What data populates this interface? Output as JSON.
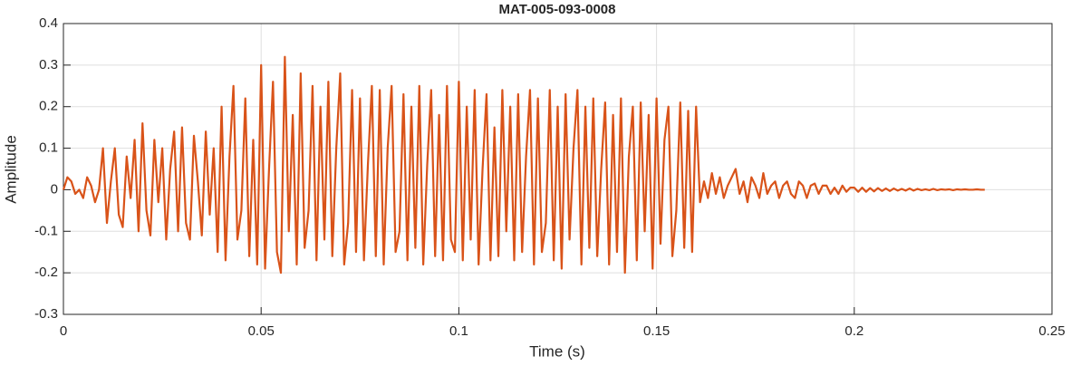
{
  "chart_data": {
    "type": "line",
    "title": "MAT-005-093-0008",
    "x_label": "Time (s)",
    "y_label": "Amplitude",
    "color": "#d95319",
    "grid": true,
    "xlim": [
      0,
      0.25
    ],
    "xticks": [
      0,
      0.05,
      0.1,
      0.15,
      0.2,
      0.25
    ],
    "ylim": [
      -0.3,
      0.4
    ],
    "yticks": [
      0.4,
      0.3,
      0.2,
      0.1,
      0,
      -0.1,
      -0.2,
      -0.3
    ],
    "x": [
      0,
      0.001,
      0.002,
      0.003,
      0.004,
      0.005,
      0.006,
      0.007,
      0.008,
      0.009,
      0.01,
      0.011,
      0.012,
      0.013,
      0.014,
      0.015,
      0.016,
      0.017,
      0.018,
      0.019,
      0.02,
      0.021,
      0.022,
      0.023,
      0.024,
      0.025,
      0.026,
      0.027,
      0.028,
      0.029,
      0.03,
      0.031,
      0.032,
      0.033,
      0.034,
      0.035,
      0.036,
      0.037,
      0.038,
      0.039,
      0.04,
      0.041,
      0.042,
      0.043,
      0.044,
      0.045,
      0.046,
      0.047,
      0.048,
      0.049,
      0.05,
      0.051,
      0.052,
      0.053,
      0.054,
      0.055,
      0.056,
      0.057,
      0.058,
      0.059,
      0.06,
      0.061,
      0.062,
      0.063,
      0.064,
      0.065,
      0.066,
      0.067,
      0.068,
      0.069,
      0.07,
      0.071,
      0.072,
      0.073,
      0.074,
      0.075,
      0.076,
      0.077,
      0.078,
      0.079,
      0.08,
      0.081,
      0.082,
      0.083,
      0.084,
      0.085,
      0.086,
      0.087,
      0.088,
      0.089,
      0.09,
      0.091,
      0.092,
      0.093,
      0.094,
      0.095,
      0.096,
      0.097,
      0.098,
      0.099,
      0.1,
      0.101,
      0.102,
      0.103,
      0.104,
      0.105,
      0.106,
      0.107,
      0.108,
      0.109,
      0.11,
      0.111,
      0.112,
      0.113,
      0.114,
      0.115,
      0.116,
      0.117,
      0.118,
      0.119,
      0.12,
      0.121,
      0.122,
      0.123,
      0.124,
      0.125,
      0.126,
      0.127,
      0.128,
      0.129,
      0.13,
      0.131,
      0.132,
      0.133,
      0.134,
      0.135,
      0.136,
      0.137,
      0.138,
      0.139,
      0.14,
      0.141,
      0.142,
      0.143,
      0.144,
      0.145,
      0.146,
      0.147,
      0.148,
      0.149,
      0.15,
      0.151,
      0.152,
      0.153,
      0.154,
      0.155,
      0.156,
      0.157,
      0.158,
      0.159,
      0.16,
      0.161,
      0.162,
      0.163,
      0.164,
      0.165,
      0.166,
      0.167,
      0.168,
      0.169,
      0.17,
      0.171,
      0.172,
      0.173,
      0.174,
      0.175,
      0.176,
      0.177,
      0.178,
      0.179,
      0.18,
      0.181,
      0.182,
      0.183,
      0.184,
      0.185,
      0.186,
      0.187,
      0.188,
      0.189,
      0.19,
      0.191,
      0.192,
      0.193,
      0.194,
      0.195,
      0.196,
      0.197,
      0.198,
      0.199,
      0.2,
      0.201,
      0.202,
      0.203,
      0.204,
      0.205,
      0.206,
      0.207,
      0.208,
      0.209,
      0.21,
      0.211,
      0.212,
      0.213,
      0.214,
      0.215,
      0.216,
      0.217,
      0.218,
      0.219,
      0.22,
      0.221,
      0.222,
      0.223,
      0.224,
      0.225,
      0.226,
      0.227,
      0.228,
      0.229,
      0.23,
      0.231,
      0.232,
      0.233
    ],
    "values": [
      0,
      0.03,
      0.02,
      -0.01,
      0,
      -0.02,
      0.03,
      0.01,
      -0.03,
      0,
      0.1,
      -0.08,
      0.02,
      0.1,
      -0.06,
      -0.09,
      0.08,
      -0.02,
      0.12,
      -0.1,
      0.16,
      -0.05,
      -0.11,
      0.12,
      -0.03,
      0.1,
      -0.12,
      0.05,
      0.14,
      -0.1,
      0.15,
      -0.08,
      -0.12,
      0.13,
      0.02,
      -0.11,
      0.14,
      -0.06,
      0.1,
      -0.15,
      0.2,
      -0.17,
      0.08,
      0.25,
      -0.12,
      -0.05,
      0.22,
      -0.16,
      0.12,
      -0.18,
      0.3,
      -0.19,
      0.05,
      0.26,
      -0.15,
      -0.2,
      0.32,
      -0.1,
      0.18,
      -0.18,
      0.28,
      -0.14,
      -0.05,
      0.25,
      -0.17,
      0.2,
      -0.12,
      0.26,
      -0.16,
      0.1,
      0.28,
      -0.18,
      -0.08,
      0.24,
      -0.15,
      0.22,
      -0.17,
      0.06,
      0.25,
      -0.16,
      0.24,
      -0.18,
      0.1,
      0.25,
      -0.15,
      -0.1,
      0.23,
      -0.17,
      0.2,
      -0.14,
      0.25,
      -0.18,
      0.06,
      0.24,
      -0.16,
      0.18,
      -0.17,
      0.25,
      -0.12,
      -0.15,
      0.26,
      -0.17,
      0.2,
      -0.12,
      0.24,
      -0.18,
      0.05,
      0.23,
      -0.17,
      0.15,
      -0.16,
      0.24,
      -0.1,
      0.2,
      -0.17,
      0.23,
      -0.15,
      0.08,
      0.24,
      -0.18,
      0.22,
      -0.15,
      -0.08,
      0.24,
      -0.17,
      0.2,
      -0.19,
      0.23,
      -0.12,
      0.1,
      0.24,
      -0.18,
      0.2,
      -0.14,
      0.22,
      -0.16,
      0.05,
      0.21,
      -0.18,
      0.18,
      -0.15,
      0.22,
      -0.2,
      0.08,
      0.2,
      -0.17,
      0.21,
      -0.1,
      0.18,
      -0.19,
      0.22,
      -0.13,
      0.12,
      0.2,
      -0.16,
      -0.05,
      0.21,
      -0.14,
      0.19,
      -0.15,
      0.2,
      -0.03,
      0.02,
      -0.02,
      0.04,
      -0.01,
      0.03,
      -0.02,
      0.01,
      0.03,
      0.05,
      -0.01,
      0.02,
      -0.03,
      0.03,
      0.01,
      -0.02,
      0.04,
      -0.01,
      0.01,
      0.02,
      -0.02,
      0.01,
      0.02,
      -0.01,
      -0.02,
      0.02,
      0.01,
      -0.02,
      0.01,
      0.015,
      -0.01,
      0.01,
      0.01,
      -0.01,
      0.005,
      -0.01,
      0.01,
      -0.005,
      0.005,
      0.005,
      -0.005,
      0.005,
      -0.005,
      0.004,
      -0.004,
      0.004,
      -0.003,
      0.003,
      -0.003,
      0.003,
      -0.002,
      0.002,
      -0.002,
      0.003,
      -0.002,
      0.002,
      -0.001,
      0.001,
      -0.001,
      0.002,
      -0.001,
      0.001,
      0,
      0.001,
      -0.001,
      0.001,
      0,
      0.001,
      0,
      0,
      0.001,
      0,
      0
    ]
  }
}
